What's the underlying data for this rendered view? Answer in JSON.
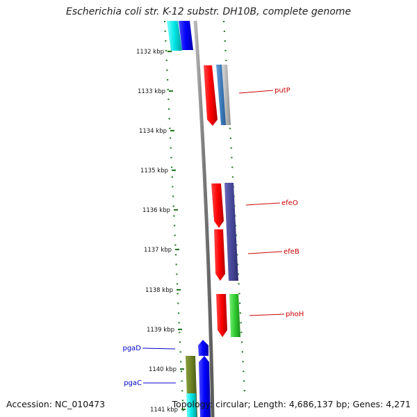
{
  "title": "Escherichia coli str. K-12 substr. DH10B, complete genome",
  "footer": {
    "accession": "Accession: NC_010473",
    "summary": "Topology: circular; Length: 4,686,137 bp; Genes: 4,271"
  },
  "ticks": [
    {
      "label": "1132 kbp"
    },
    {
      "label": "1133 kbp"
    },
    {
      "label": "1134 kbp"
    },
    {
      "label": "1135 kbp"
    },
    {
      "label": "1136 kbp"
    },
    {
      "label": "1137 kbp"
    },
    {
      "label": "1138 kbp"
    },
    {
      "label": "1139 kbp"
    },
    {
      "label": "1140 kbp"
    },
    {
      "label": "1141 kbp"
    }
  ],
  "gene_labels": [
    {
      "name": "putP",
      "strand": "forward",
      "color": "#cc0000"
    },
    {
      "name": "efeO",
      "strand": "forward",
      "color": "#cc0000"
    },
    {
      "name": "efeB",
      "strand": "forward",
      "color": "#cc0000"
    },
    {
      "name": "phoH",
      "strand": "forward",
      "color": "#cc0000"
    },
    {
      "name": "pgaD",
      "strand": "reverse",
      "color": "#0000cc"
    },
    {
      "name": "pgaC",
      "strand": "reverse",
      "color": "#0000cc"
    }
  ],
  "colors": {
    "backbone": "#888888",
    "tick": "#2a7a2a",
    "cds_forward": "#ff0000",
    "cds_reverse": "#0000ff"
  }
}
